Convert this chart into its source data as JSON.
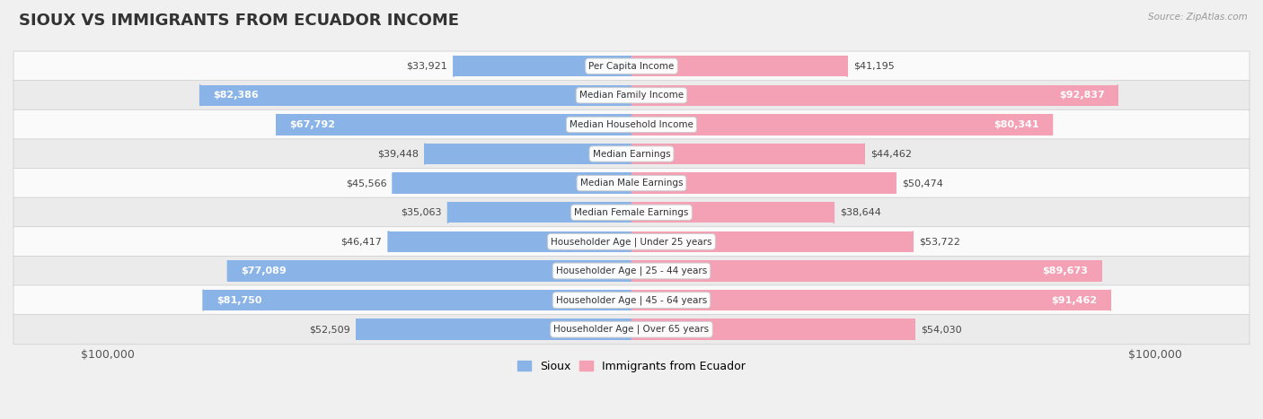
{
  "title": "SIOUX VS IMMIGRANTS FROM ECUADOR INCOME",
  "source": "Source: ZipAtlas.com",
  "categories": [
    "Per Capita Income",
    "Median Family Income",
    "Median Household Income",
    "Median Earnings",
    "Median Male Earnings",
    "Median Female Earnings",
    "Householder Age | Under 25 years",
    "Householder Age | 25 - 44 years",
    "Householder Age | 45 - 64 years",
    "Householder Age | Over 65 years"
  ],
  "sioux_values": [
    33921,
    82386,
    67792,
    39448,
    45566,
    35063,
    46417,
    77089,
    81750,
    52509
  ],
  "ecuador_values": [
    41195,
    92837,
    80341,
    44462,
    50474,
    38644,
    53722,
    89673,
    91462,
    54030
  ],
  "sioux_labels": [
    "$33,921",
    "$82,386",
    "$67,792",
    "$39,448",
    "$45,566",
    "$35,063",
    "$46,417",
    "$77,089",
    "$81,750",
    "$52,509"
  ],
  "ecuador_labels": [
    "$41,195",
    "$92,837",
    "$80,341",
    "$44,462",
    "$50,474",
    "$38,644",
    "$53,722",
    "$89,673",
    "$91,462",
    "$54,030"
  ],
  "sioux_color": "#8ab4e8",
  "ecuador_color": "#f4a0b5",
  "max_value": 100000,
  "background_color": "#f0f0f0",
  "row_colors": [
    "#fafafa",
    "#ebebeb",
    "#fafafa",
    "#ebebeb",
    "#fafafa",
    "#ebebeb",
    "#fafafa",
    "#ebebeb",
    "#fafafa",
    "#ebebeb"
  ],
  "title_fontsize": 13,
  "label_fontsize": 8.0,
  "cat_fontsize": 7.5,
  "bar_height": 0.72,
  "legend_sioux": "Sioux",
  "legend_ecuador": "Immigrants from Ecuador",
  "x_tick_label": "$100,000",
  "sioux_label_threshold": 58000,
  "ecuador_label_threshold": 58000
}
